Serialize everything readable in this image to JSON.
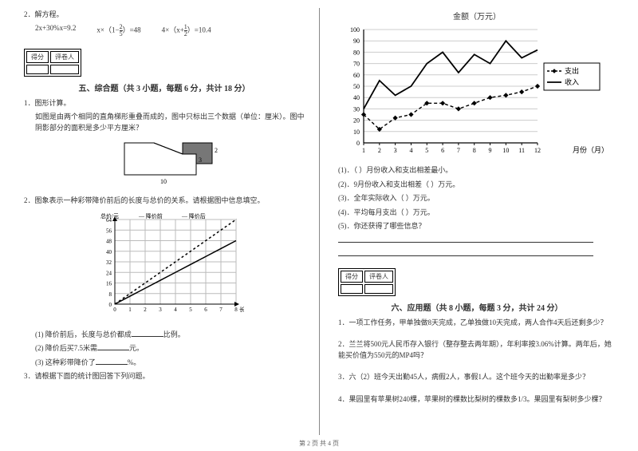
{
  "left": {
    "q2_label": "2．解方程。",
    "equations": [
      "2x+30%x=9.2",
      "x×（1−​2/5​）=48",
      "4×（x+​1/2​）=10.4"
    ],
    "scorebox": {
      "col1": "得分",
      "col2": "评卷人"
    },
    "section5_title": "五、综合题（共 3 小题，每题 6 分，共计 18 分）",
    "s5_q1_label": "1．图形计算。",
    "s5_q1_body": "如图是由两个相同的直角梯形重叠而成的，图中只标出三个数据（单位：厘米）。图中阴影部分的面积是多少平方厘米？",
    "trapezoid": {
      "bottom_label": "10",
      "right_top": "2",
      "right_bottom": "3",
      "fill": "#777",
      "stroke": "#000",
      "bg": "#fff"
    },
    "s5_q2_label": "2．图象表示一种彩带降价前后的长度与总价的关系。请根据图中信息填空。",
    "pricechart": {
      "type": "line",
      "x_max": 8,
      "y_max": 64,
      "y_step": 8,
      "x_labels": [
        "0",
        "1",
        "2",
        "3",
        "4",
        "5",
        "6",
        "7",
        "8"
      ],
      "y_labels": [
        "0",
        "8",
        "16",
        "24",
        "32",
        "40",
        "48",
        "56",
        "64"
      ],
      "x_axis_title": "长度/米",
      "y_axis_title": "总价/元",
      "legend": {
        "before": "降价前",
        "after": "降价后",
        "before_style": "dashed",
        "after_style": "solid"
      },
      "before": {
        "points": [
          [
            0,
            0
          ],
          [
            1,
            8
          ],
          [
            2,
            16
          ],
          [
            3,
            24
          ],
          [
            4,
            32
          ],
          [
            5,
            40
          ],
          [
            6,
            48
          ],
          [
            7,
            56
          ],
          [
            8,
            64
          ]
        ],
        "color": "#000",
        "dash": "3,3"
      },
      "after": {
        "points": [
          [
            0,
            0
          ],
          [
            1,
            6
          ],
          [
            2,
            12
          ],
          [
            3,
            18
          ],
          [
            4,
            24
          ],
          [
            5,
            30
          ],
          [
            6,
            36
          ],
          [
            7,
            42
          ],
          [
            8,
            48
          ]
        ],
        "color": "#000",
        "dash": ""
      },
      "grid_color": "#bbb",
      "bg": "#fff",
      "axis_color": "#000",
      "font_size": 7
    },
    "s5_q2_subs": [
      "(1) 降价前后，长度与总价都成______比例。",
      "(2) 降价后买7.5米需______元。",
      "(3) 这种彩带降价了______%。"
    ],
    "s5_q3_label": "3．请根据下面的统计图回答下列问题。"
  },
  "right": {
    "linechart": {
      "type": "line",
      "title": "金额（万元）",
      "x_title": "月份（月）",
      "x_labels": [
        "1",
        "2",
        "3",
        "4",
        "5",
        "6",
        "7",
        "8",
        "9",
        "10",
        "11",
        "12"
      ],
      "y_min": 0,
      "y_max": 100,
      "y_step": 10,
      "legend": {
        "expense": "支出",
        "income": "收入",
        "expense_style": "dashed-dot",
        "income_style": "solid"
      },
      "income": {
        "points": [
          [
            1,
            30
          ],
          [
            2,
            55
          ],
          [
            3,
            42
          ],
          [
            4,
            50
          ],
          [
            5,
            70
          ],
          [
            6,
            80
          ],
          [
            7,
            62
          ],
          [
            8,
            78
          ],
          [
            9,
            70
          ],
          [
            10,
            90
          ],
          [
            11,
            75
          ],
          [
            12,
            82
          ]
        ],
        "color": "#000",
        "dash": "",
        "marker": "none"
      },
      "expense": {
        "points": [
          [
            1,
            25
          ],
          [
            2,
            12
          ],
          [
            3,
            22
          ],
          [
            4,
            25
          ],
          [
            5,
            35
          ],
          [
            6,
            35
          ],
          [
            7,
            30
          ],
          [
            8,
            35
          ],
          [
            9,
            40
          ],
          [
            10,
            42
          ],
          [
            11,
            45
          ],
          [
            12,
            50
          ]
        ],
        "color": "#000",
        "dash": "4,3",
        "marker": "diamond"
      },
      "grid_color": "#ccc",
      "bg": "#fff",
      "axis_color": "#000",
      "font_size": 8
    },
    "subs": [
      "(1)．（  ）月份收入和支出相差最小。",
      "(2)．9月份收入和支出相差（  ）万元。",
      "(3)．全年实际收入（  ）万元。",
      "(4)．平均每月支出（  ）万元。",
      "(5)．你还获得了哪些信息？"
    ],
    "scorebox": {
      "col1": "得分",
      "col2": "评卷人"
    },
    "section6_title": "六、应用题（共 8 小题，每题 3 分，共计 24 分）",
    "s6": [
      "1．一项工作任务，甲单独做8天完成，乙单独做10天完成，两人合作4天后还剩多少？",
      "2．兰兰将500元人民币存入银行（整存整去两年期），年利率按3.06%计算。两年后，她能买价值为550元的MP4吗？",
      "3．六（2）班今天出勤45人，病假2人，事假1人。这个班今天的出勤率是多少？",
      "4．果园里有苹果树240棵，苹果树的棵数比梨树的棵数多1/3。果园里有梨树多少棵？"
    ]
  },
  "footer": "第 2 页  共 4 页"
}
